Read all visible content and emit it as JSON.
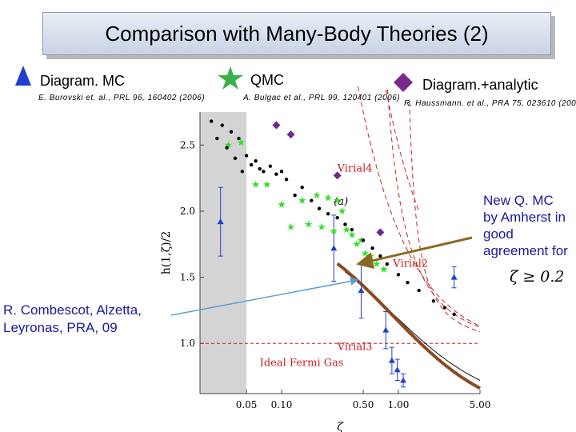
{
  "title": "Comparison with Many-Body Theories (2)",
  "methods": [
    {
      "label": "Diagram. MC",
      "citation": "E. Burovski et. al., PRL 96, 160402 (2006)",
      "icon": "triangle-icon",
      "color": "#1f3fd0"
    },
    {
      "label": "QMC",
      "citation": "A. Bulgac et al., PRL 99, 120401 (2006)",
      "icon": "star-icon",
      "color": "#3cb04a"
    },
    {
      "label": "Diagram.+analytic",
      "citation": "R. Haussmann. et al., PRA 75, 023610 (2007)",
      "icon": "diamond-icon",
      "color": "#7a2a8e"
    }
  ],
  "annotation_right": {
    "text": "New Q. MC by Amherst in good agreement for",
    "condition": "ζ ≥ 0.2"
  },
  "annotation_left": "R. Combescot, Alzetta, Leyronas, PRA, 09",
  "colors": {
    "dmc": "#1f3fd0",
    "qmc": "#33e02a",
    "diag": "#6e2a8a",
    "virial": "#c92020",
    "theory": "#8b4a20",
    "arrow_right": "#8a6a20",
    "arrow_left": "#5aa0d8"
  },
  "chart_data": {
    "type": "scatter",
    "xlabel": "ζ",
    "ylabel": "h(1,ζ)/2",
    "panel_label": "(a)",
    "x_scale": "log",
    "xlim": [
      0.02,
      5.0
    ],
    "ylim": [
      0.62,
      2.75
    ],
    "x_ticks": [
      "0.05",
      "0.10",
      "0.50",
      "1.00",
      "5.00"
    ],
    "y_ticks": [
      "1.0",
      "1.5",
      "2.0",
      "2.5"
    ],
    "curve_labels": [
      "Virial4",
      "Virial2",
      "Virial3",
      "Ideal Fermi Gas"
    ],
    "shaded_region": [
      0.02,
      0.05
    ],
    "series": [
      {
        "name": "Diagram. MC",
        "marker": "triangle",
        "x": [
          0.03,
          0.28,
          0.48,
          0.78,
          0.88,
          0.98,
          1.1,
          3.0
        ],
        "y": [
          1.92,
          1.72,
          1.4,
          1.1,
          0.87,
          0.8,
          0.72,
          1.5
        ],
        "err": [
          0.26,
          0.25,
          0.21,
          0.14,
          0.1,
          0.08,
          0.05,
          0.08
        ]
      },
      {
        "name": "QMC",
        "marker": "star",
        "x": [
          0.035,
          0.045,
          0.06,
          0.075,
          0.1,
          0.12,
          0.15,
          0.17,
          0.2,
          0.22,
          0.25,
          0.28,
          0.3,
          0.33,
          0.36,
          0.4,
          0.44,
          0.48,
          0.52,
          0.58,
          0.65,
          0.75
        ],
        "y": [
          2.5,
          2.52,
          2.2,
          2.2,
          2.05,
          1.88,
          2.08,
          1.9,
          2.12,
          1.88,
          2.1,
          1.85,
          2.08,
          2.0,
          1.86,
          1.82,
          1.75,
          1.78,
          1.68,
          1.66,
          1.6,
          1.56
        ]
      },
      {
        "name": "Diagram.+analytic",
        "marker": "diamond",
        "x": [
          0.09,
          0.12,
          0.3,
          0.7
        ],
        "y": [
          2.65,
          2.58,
          2.27,
          1.84
        ]
      },
      {
        "name": "New Q. MC",
        "marker": "dot",
        "x": [
          0.025,
          0.028,
          0.031,
          0.034,
          0.037,
          0.04,
          0.043,
          0.046,
          0.05,
          0.055,
          0.06,
          0.065,
          0.07,
          0.08,
          0.09,
          0.1,
          0.11,
          0.13,
          0.15,
          0.18,
          0.21,
          0.25,
          0.3,
          0.35,
          0.4,
          0.5,
          0.6,
          0.7,
          0.8,
          1.0,
          1.2,
          1.5,
          2.0,
          2.5,
          3.0
        ],
        "y": [
          2.68,
          2.55,
          2.65,
          2.48,
          2.6,
          2.4,
          2.55,
          2.3,
          2.42,
          2.35,
          2.38,
          2.32,
          2.3,
          2.34,
          2.28,
          2.3,
          2.24,
          2.12,
          2.18,
          2.08,
          2.02,
          1.98,
          1.95,
          1.9,
          1.86,
          1.78,
          1.72,
          1.66,
          1.6,
          1.52,
          1.46,
          1.4,
          1.32,
          1.27,
          1.22
        ]
      }
    ]
  }
}
